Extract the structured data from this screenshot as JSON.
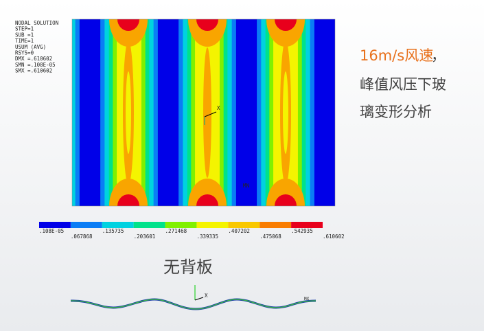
{
  "plot": {
    "info": [
      "NODAL SOLUTION",
      "STEP=1",
      "SUB =1",
      "TIME=1",
      "USUM      (AVG)",
      "RSYS=0",
      "DMX =.610602",
      "SMN =.108E-05",
      "SMX =.610602"
    ],
    "legend_labels": [
      ".108E-05",
      ".067868",
      ".135735",
      ".203601",
      ".271468",
      ".339335",
      ".407202",
      ".475068",
      ".542935",
      ".610602"
    ],
    "axis_label": "X",
    "min_label": "MN"
  },
  "headline": {
    "highlight": "16m/s风速",
    "comma": "，",
    "line2": "峰值风压下玻",
    "line3": "璃变形分析"
  },
  "caption": "无背板",
  "side_view": {
    "axis_label": "X",
    "max_label": "MX"
  }
}
